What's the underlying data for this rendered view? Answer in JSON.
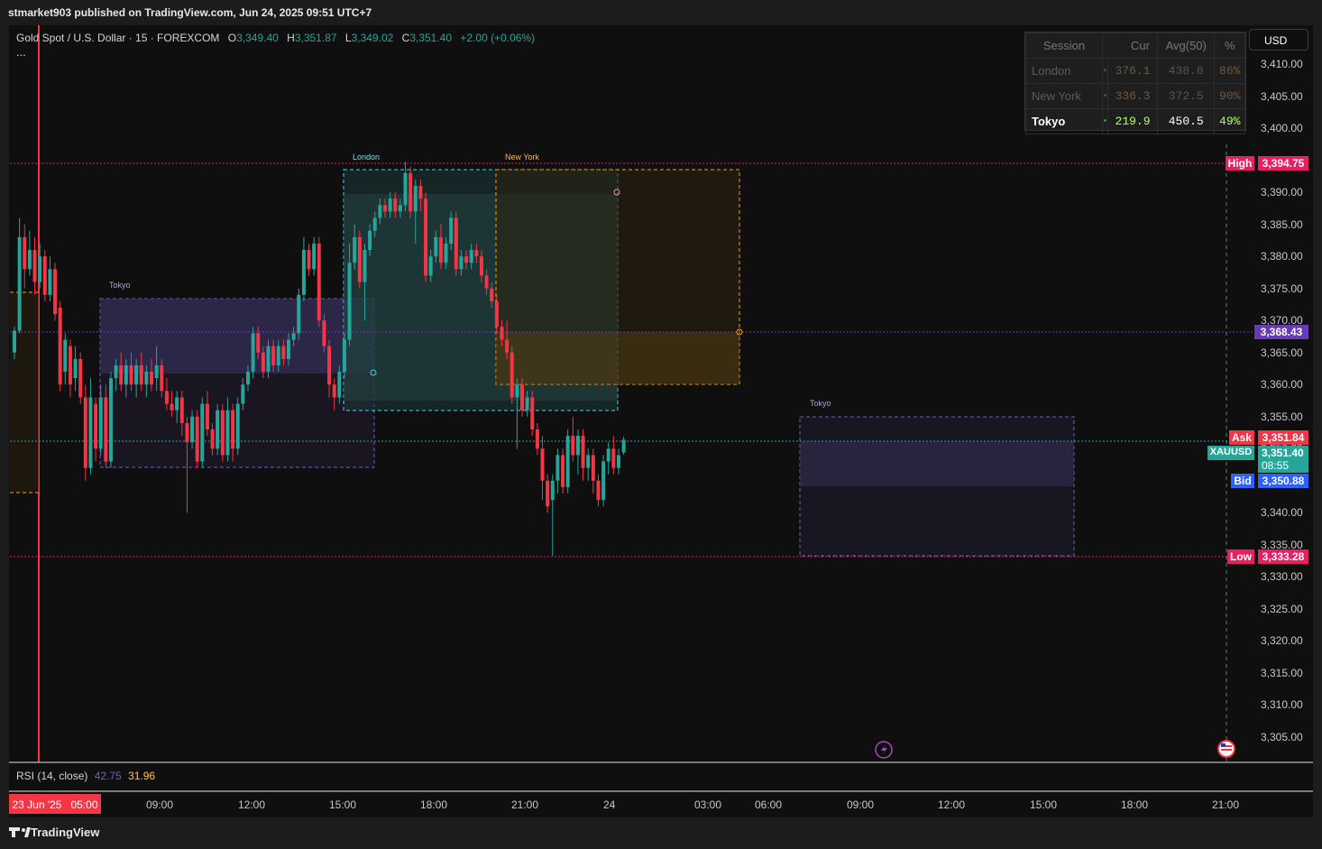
{
  "header": {
    "publisher": "stmarket903 published on TradingView.com, Jun 24, 2025 09:51 UTC+7"
  },
  "legend": {
    "symbol": "Gold Spot / U.S. Dollar · 15 · FOREXCOM",
    "open_key": "O",
    "open": "3,349.40",
    "high_key": "H",
    "high": "3,351.87",
    "low_key": "L",
    "low": "3,349.02",
    "close_key": "C",
    "close": "3,351.40",
    "change": "+2.00 (+0.06%)",
    "more": "..."
  },
  "currency_button": "USD",
  "session_table": {
    "headers": [
      "Session",
      "Cur",
      "Avg(50)",
      "%"
    ],
    "rows": [
      {
        "name": "London",
        "dot": "•",
        "cur": "376.1",
        "avg": "438.8",
        "pct": "86%"
      },
      {
        "name": "New York",
        "dot": "•",
        "cur": "336.3",
        "avg": "372.5",
        "pct": "90%"
      },
      {
        "name": "Tokyo",
        "dot": "•",
        "cur": "219.9",
        "avg": "450.5",
        "pct": "49%"
      }
    ]
  },
  "session_labels": {
    "tokyo": "Tokyo",
    "london": "London",
    "new_york": "New York"
  },
  "price_axis": {
    "ticks": [
      "3,410.00",
      "3,405.00",
      "3,400.00",
      "3,395.00",
      "3,390.00",
      "3,385.00",
      "3,380.00",
      "3,375.00",
      "3,370.00",
      "3,365.00",
      "3,360.00",
      "3,355.00",
      "3,350.00",
      "3,345.00",
      "3,340.00",
      "3,335.00",
      "3,330.00",
      "3,325.00",
      "3,320.00",
      "3,315.00",
      "3,310.00",
      "3,305.00"
    ],
    "high_label": "High",
    "high_value": "3,394.75",
    "level_value": "3,368.43",
    "ask_label": "Ask",
    "ask_value": "3,351.84",
    "symbol_tag": "XAUUSD",
    "last_value": "3,351.40",
    "countdown": "08:55",
    "bid_label": "Bid",
    "bid_value": "3,350.88",
    "low_label": "Low",
    "low_value": "3,333.28"
  },
  "time_axis": {
    "current": "23 Jun '25   05:00",
    "ticks": [
      "09:00",
      "12:00",
      "15:00",
      "18:00",
      "21:00",
      "24",
      "03:00",
      "06:00",
      "09:00",
      "12:00",
      "15:00",
      "18:00",
      "21:00"
    ]
  },
  "rsi": {
    "label": "RSI (14, close)",
    "v1": "42.75",
    "v2": "31.96"
  },
  "footer": {
    "brand": "TradingView"
  },
  "colors": {
    "up": "#26a69a",
    "down": "#f23645",
    "tokyo": "#7e57c2",
    "london": "#4dd0e1",
    "new_york": "#ff9800",
    "high_low": "#e91e63",
    "level": "#673ab7",
    "bid": "#2962ff"
  },
  "chart_data": {
    "type": "candlestick",
    "symbol": "Gold Spot / U.S. Dollar",
    "interval": "15",
    "ylim": [
      3303,
      3413
    ],
    "x_range": [
      "2025-06-23 05:00",
      "2025-06-24 21:00"
    ],
    "high": 3394.75,
    "low": 3333.28,
    "current_level": 3368.43,
    "ask": 3351.84,
    "bid": 3350.88,
    "last": 3351.4,
    "rsi": [
      42.75,
      31.96
    ],
    "candles": [
      [
        3365,
        3368.4,
        3364,
        3369
      ],
      [
        3368.4,
        3383,
        3368,
        3386
      ],
      [
        3383,
        3378,
        3375,
        3385
      ],
      [
        3378,
        3381,
        3377,
        3384
      ],
      [
        3381,
        3376,
        3374,
        3383
      ],
      [
        3376,
        3380,
        3375,
        3382
      ],
      [
        3380,
        3374,
        3373,
        3381
      ],
      [
        3374,
        3378,
        3373,
        3380
      ],
      [
        3378,
        3371,
        3370,
        3379
      ],
      [
        3372,
        3360,
        3359,
        3373
      ],
      [
        3362,
        3367,
        3360,
        3368
      ],
      [
        3366,
        3360,
        3358,
        3367
      ],
      [
        3361,
        3364,
        3359,
        3366
      ],
      [
        3364,
        3358,
        3357,
        3365
      ],
      [
        3358,
        3347,
        3345,
        3360
      ],
      [
        3347,
        3358,
        3346,
        3361
      ],
      [
        3357,
        3350,
        3348,
        3358
      ],
      [
        3350,
        3358,
        3349,
        3360
      ],
      [
        3358,
        3348,
        3347,
        3360
      ],
      [
        3348,
        3361,
        3347,
        3362
      ],
      [
        3361,
        3363,
        3359,
        3364
      ],
      [
        3363,
        3360,
        3359,
        3365
      ],
      [
        3360,
        3363,
        3358,
        3364
      ],
      [
        3363,
        3360,
        3359,
        3365
      ],
      [
        3360,
        3363,
        3358,
        3364
      ],
      [
        3363,
        3360,
        3359,
        3365
      ],
      [
        3360,
        3362,
        3358,
        3363
      ],
      [
        3362,
        3360,
        3359,
        3364
      ],
      [
        3361,
        3363,
        3359,
        3366
      ],
      [
        3363,
        3359,
        3358,
        3364
      ],
      [
        3359,
        3357,
        3356,
        3361
      ],
      [
        3357,
        3356,
        3355,
        3359
      ],
      [
        3356,
        3358,
        3354,
        3359
      ],
      [
        3358,
        3354,
        3352,
        3359
      ],
      [
        3354,
        3351,
        3340,
        3355
      ],
      [
        3351,
        3355,
        3350,
        3356
      ],
      [
        3355,
        3348,
        3347,
        3356
      ],
      [
        3348,
        3357,
        3347,
        3358
      ],
      [
        3357,
        3353,
        3352,
        3359
      ],
      [
        3353,
        3350,
        3349,
        3354
      ],
      [
        3350,
        3356,
        3349,
        3357
      ],
      [
        3356,
        3349,
        3348,
        3357
      ],
      [
        3349,
        3356,
        3348,
        3358
      ],
      [
        3356,
        3350,
        3348,
        3357
      ],
      [
        3350,
        3357,
        3349,
        3358
      ],
      [
        3357,
        3360,
        3356,
        3361
      ],
      [
        3360,
        3362,
        3359,
        3363
      ],
      [
        3362,
        3368,
        3361,
        3369
      ],
      [
        3368,
        3365,
        3364,
        3369
      ],
      [
        3365,
        3362,
        3361,
        3366
      ],
      [
        3362,
        3366,
        3361,
        3367
      ],
      [
        3366,
        3363,
        3362,
        3367
      ],
      [
        3363,
        3366,
        3362,
        3367
      ],
      [
        3366,
        3364,
        3363,
        3367
      ],
      [
        3364,
        3367,
        3363,
        3368
      ],
      [
        3367,
        3368,
        3366,
        3369
      ],
      [
        3368,
        3374,
        3367,
        3375
      ],
      [
        3374,
        3381,
        3373,
        3383
      ],
      [
        3381,
        3378,
        3377,
        3382
      ],
      [
        3378,
        3382,
        3377,
        3383
      ],
      [
        3382,
        3370,
        3369,
        3383
      ],
      [
        3370,
        3366,
        3365,
        3371
      ],
      [
        3366,
        3360,
        3358,
        3367
      ],
      [
        3360,
        3358,
        3356,
        3361
      ],
      [
        3358,
        3362,
        3357,
        3363
      ],
      [
        3362,
        3367,
        3361,
        3368
      ],
      [
        3367,
        3379,
        3366,
        3382
      ],
      [
        3379,
        3383,
        3378,
        3385
      ],
      [
        3383,
        3376,
        3375,
        3384
      ],
      [
        3376,
        3381,
        3370,
        3382
      ],
      [
        3381,
        3384,
        3380,
        3385
      ],
      [
        3384,
        3386,
        3383,
        3387
      ],
      [
        3386,
        3388,
        3385,
        3389
      ],
      [
        3388,
        3387,
        3386,
        3389
      ],
      [
        3387,
        3389,
        3386,
        3390
      ],
      [
        3389,
        3387,
        3386,
        3390
      ],
      [
        3387,
        3388,
        3386,
        3389
      ],
      [
        3388,
        3393,
        3387,
        3394.75
      ],
      [
        3393,
        3387,
        3386,
        3394
      ],
      [
        3387,
        3391,
        3382,
        3392
      ],
      [
        3391,
        3389,
        3387,
        3392
      ],
      [
        3389,
        3377,
        3376,
        3390
      ],
      [
        3377,
        3380,
        3376,
        3381
      ],
      [
        3380,
        3383,
        3379,
        3384
      ],
      [
        3383,
        3379,
        3378,
        3385
      ],
      [
        3379,
        3382,
        3378,
        3383
      ],
      [
        3382,
        3386,
        3381,
        3387
      ],
      [
        3386,
        3378,
        3377,
        3387
      ],
      [
        3378,
        3380,
        3377,
        3381
      ],
      [
        3380,
        3379,
        3378,
        3381
      ],
      [
        3379,
        3381,
        3378,
        3382
      ],
      [
        3381,
        3380,
        3379,
        3382
      ],
      [
        3380,
        3377,
        3376,
        3381
      ],
      [
        3377,
        3375,
        3374,
        3378
      ],
      [
        3375,
        3373,
        3372,
        3376
      ],
      [
        3373,
        3369,
        3368,
        3374
      ],
      [
        3369,
        3367,
        3366,
        3370
      ],
      [
        3367,
        3365,
        3364,
        3370
      ],
      [
        3365,
        3358,
        3357,
        3366
      ],
      [
        3358,
        3360,
        3350,
        3361
      ],
      [
        3360,
        3356,
        3355,
        3361
      ],
      [
        3356,
        3358,
        3355,
        3359
      ],
      [
        3358,
        3353,
        3352,
        3359
      ],
      [
        3353,
        3350,
        3349,
        3354
      ],
      [
        3350,
        3345,
        3342,
        3352
      ],
      [
        3345,
        3341,
        3340,
        3346
      ],
      [
        3342,
        3345,
        3333.28,
        3346
      ],
      [
        3345,
        3349,
        3343,
        3350
      ],
      [
        3349,
        3344,
        3343,
        3350
      ],
      [
        3344,
        3352,
        3343,
        3353
      ],
      [
        3352,
        3349,
        3348,
        3355
      ],
      [
        3349,
        3352,
        3346,
        3353
      ],
      [
        3352,
        3347,
        3345,
        3353
      ],
      [
        3347,
        3349,
        3345,
        3350
      ],
      [
        3349,
        3345,
        3343,
        3350
      ],
      [
        3345,
        3342,
        3341,
        3346
      ],
      [
        3342,
        3348,
        3341,
        3349
      ],
      [
        3348,
        3350,
        3346,
        3351
      ],
      [
        3350,
        3347,
        3346,
        3352
      ],
      [
        3347,
        3349,
        3346,
        3350
      ],
      [
        3349.4,
        3351.4,
        3349.02,
        3351.87
      ]
    ]
  }
}
